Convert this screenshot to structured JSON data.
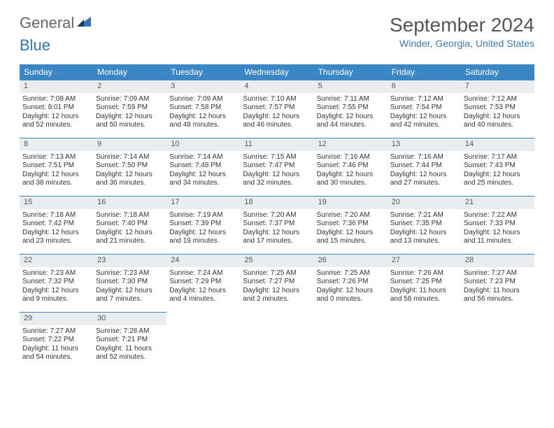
{
  "brand": {
    "part1": "General",
    "part2": "Blue"
  },
  "title": {
    "month": "September 2024",
    "location": "Winder, Georgia, United States"
  },
  "colors": {
    "header_bg": "#3b86c4",
    "header_fg": "#ffffff",
    "daynum_bg": "#e9edf0",
    "rule": "#3b86c4",
    "brand_grey": "#666666",
    "brand_blue": "#2f77b8",
    "location_color": "#3b7ab3"
  },
  "weekdays": [
    "Sunday",
    "Monday",
    "Tuesday",
    "Wednesday",
    "Thursday",
    "Friday",
    "Saturday"
  ],
  "weeks": [
    [
      {
        "n": "1",
        "sr": "7:08 AM",
        "ss": "8:01 PM",
        "dl": "12 hours and 52 minutes."
      },
      {
        "n": "2",
        "sr": "7:09 AM",
        "ss": "7:59 PM",
        "dl": "12 hours and 50 minutes."
      },
      {
        "n": "3",
        "sr": "7:09 AM",
        "ss": "7:58 PM",
        "dl": "12 hours and 48 minutes."
      },
      {
        "n": "4",
        "sr": "7:10 AM",
        "ss": "7:57 PM",
        "dl": "12 hours and 46 minutes."
      },
      {
        "n": "5",
        "sr": "7:11 AM",
        "ss": "7:55 PM",
        "dl": "12 hours and 44 minutes."
      },
      {
        "n": "6",
        "sr": "7:12 AM",
        "ss": "7:54 PM",
        "dl": "12 hours and 42 minutes."
      },
      {
        "n": "7",
        "sr": "7:12 AM",
        "ss": "7:53 PM",
        "dl": "12 hours and 40 minutes."
      }
    ],
    [
      {
        "n": "8",
        "sr": "7:13 AM",
        "ss": "7:51 PM",
        "dl": "12 hours and 38 minutes."
      },
      {
        "n": "9",
        "sr": "7:14 AM",
        "ss": "7:50 PM",
        "dl": "12 hours and 36 minutes."
      },
      {
        "n": "10",
        "sr": "7:14 AM",
        "ss": "7:48 PM",
        "dl": "12 hours and 34 minutes."
      },
      {
        "n": "11",
        "sr": "7:15 AM",
        "ss": "7:47 PM",
        "dl": "12 hours and 32 minutes."
      },
      {
        "n": "12",
        "sr": "7:16 AM",
        "ss": "7:46 PM",
        "dl": "12 hours and 30 minutes."
      },
      {
        "n": "13",
        "sr": "7:16 AM",
        "ss": "7:44 PM",
        "dl": "12 hours and 27 minutes."
      },
      {
        "n": "14",
        "sr": "7:17 AM",
        "ss": "7:43 PM",
        "dl": "12 hours and 25 minutes."
      }
    ],
    [
      {
        "n": "15",
        "sr": "7:18 AM",
        "ss": "7:42 PM",
        "dl": "12 hours and 23 minutes."
      },
      {
        "n": "16",
        "sr": "7:18 AM",
        "ss": "7:40 PM",
        "dl": "12 hours and 21 minutes."
      },
      {
        "n": "17",
        "sr": "7:19 AM",
        "ss": "7:39 PM",
        "dl": "12 hours and 19 minutes."
      },
      {
        "n": "18",
        "sr": "7:20 AM",
        "ss": "7:37 PM",
        "dl": "12 hours and 17 minutes."
      },
      {
        "n": "19",
        "sr": "7:20 AM",
        "ss": "7:36 PM",
        "dl": "12 hours and 15 minutes."
      },
      {
        "n": "20",
        "sr": "7:21 AM",
        "ss": "7:35 PM",
        "dl": "12 hours and 13 minutes."
      },
      {
        "n": "21",
        "sr": "7:22 AM",
        "ss": "7:33 PM",
        "dl": "12 hours and 11 minutes."
      }
    ],
    [
      {
        "n": "22",
        "sr": "7:23 AM",
        "ss": "7:32 PM",
        "dl": "12 hours and 9 minutes."
      },
      {
        "n": "23",
        "sr": "7:23 AM",
        "ss": "7:30 PM",
        "dl": "12 hours and 7 minutes."
      },
      {
        "n": "24",
        "sr": "7:24 AM",
        "ss": "7:29 PM",
        "dl": "12 hours and 4 minutes."
      },
      {
        "n": "25",
        "sr": "7:25 AM",
        "ss": "7:27 PM",
        "dl": "12 hours and 2 minutes."
      },
      {
        "n": "26",
        "sr": "7:25 AM",
        "ss": "7:26 PM",
        "dl": "12 hours and 0 minutes."
      },
      {
        "n": "27",
        "sr": "7:26 AM",
        "ss": "7:25 PM",
        "dl": "11 hours and 58 minutes."
      },
      {
        "n": "28",
        "sr": "7:27 AM",
        "ss": "7:23 PM",
        "dl": "11 hours and 56 minutes."
      }
    ],
    [
      {
        "n": "29",
        "sr": "7:27 AM",
        "ss": "7:22 PM",
        "dl": "11 hours and 54 minutes."
      },
      {
        "n": "30",
        "sr": "7:28 AM",
        "ss": "7:21 PM",
        "dl": "11 hours and 52 minutes."
      },
      null,
      null,
      null,
      null,
      null
    ]
  ],
  "labels": {
    "sunrise": "Sunrise:",
    "sunset": "Sunset:",
    "daylight": "Daylight:"
  }
}
